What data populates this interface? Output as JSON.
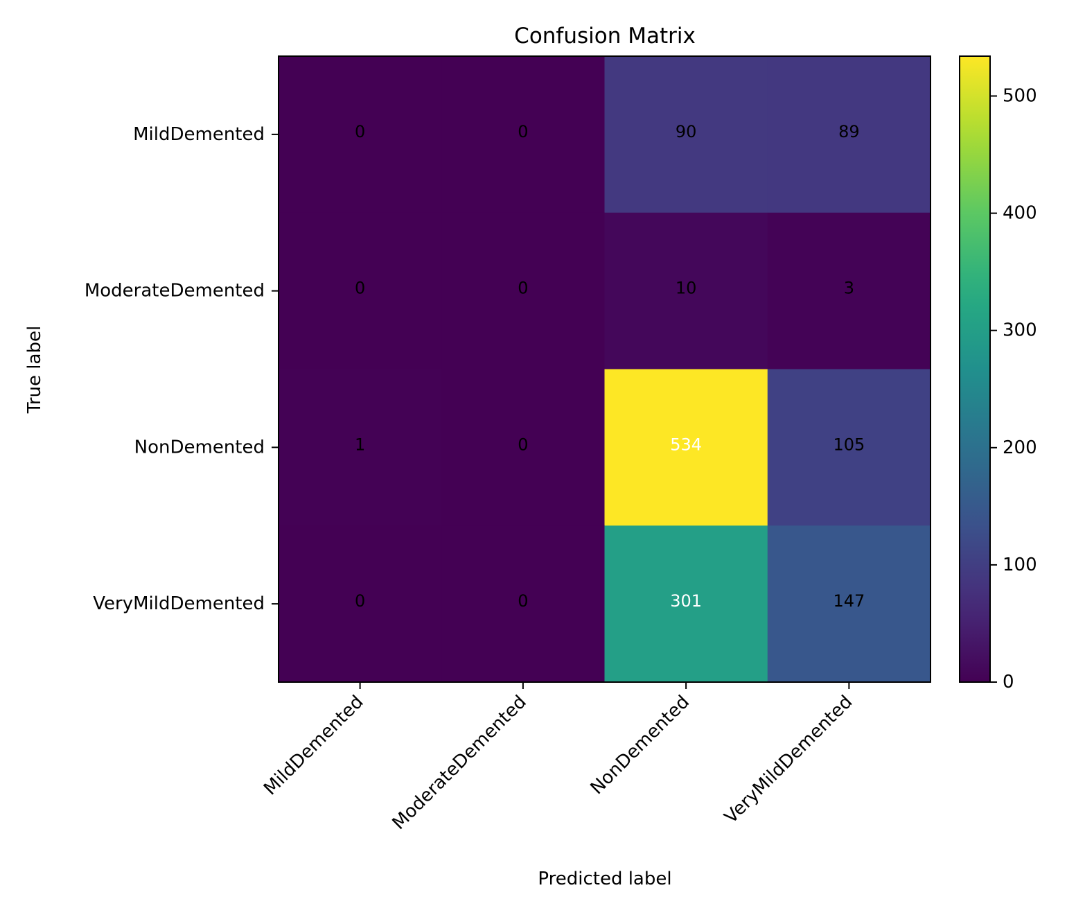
{
  "chart_data": {
    "type": "heatmap",
    "title": "Confusion Matrix",
    "xlabel": "Predicted label",
    "ylabel": "True label",
    "x_categories": [
      "MildDemented",
      "ModerateDemented",
      "NonDemented",
      "VeryMildDemented"
    ],
    "y_categories": [
      "MildDemented",
      "ModerateDemented",
      "NonDemented",
      "VeryMildDemented"
    ],
    "matrix": [
      [
        0,
        0,
        90,
        89
      ],
      [
        0,
        0,
        10,
        3
      ],
      [
        1,
        0,
        534,
        105
      ],
      [
        0,
        0,
        301,
        147
      ]
    ],
    "colormap": "viridis",
    "value_range": [
      0,
      534
    ],
    "colorbar": {
      "ticks": [
        0,
        100,
        200,
        300,
        400,
        500
      ]
    },
    "label_colors": {
      "dark_text": "#000000",
      "light_text": "#ffffff"
    }
  }
}
